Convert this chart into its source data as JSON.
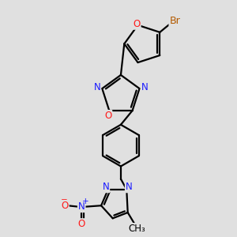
{
  "background_color": "#e0e0e0",
  "atom_colors": {
    "C": "#000000",
    "N": "#1a1aff",
    "O": "#ff1a1a",
    "Br": "#b35a00"
  },
  "bond_color": "#000000",
  "bond_width": 1.6,
  "font_size": 8.5
}
